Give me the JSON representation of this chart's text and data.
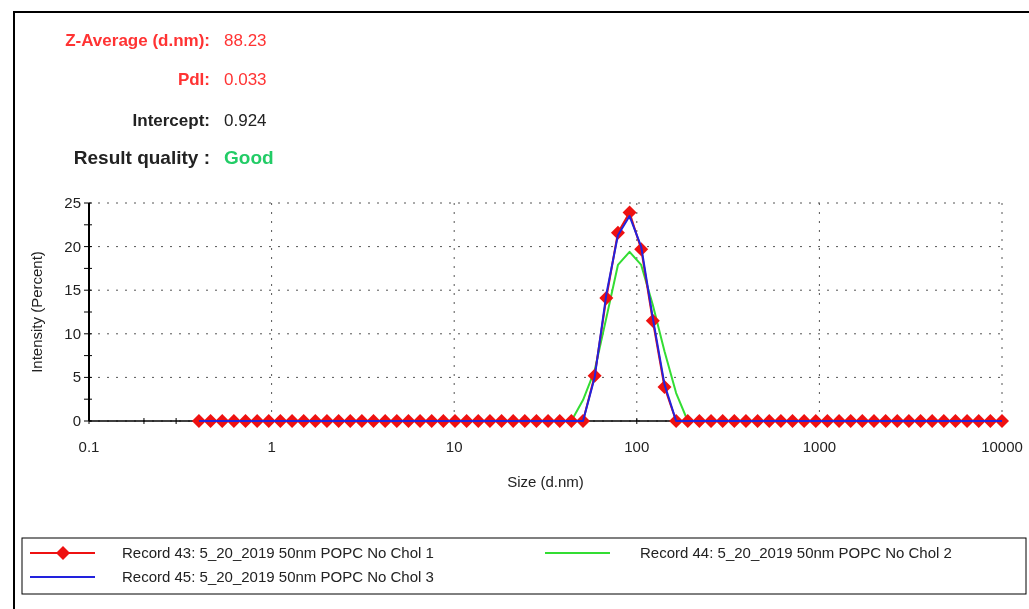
{
  "chart_data": {
    "type": "line",
    "annotations": [
      "Z-Average (d.nm):",
      "88.23",
      "PdI:",
      "0.033",
      "Intercept:",
      "0.924",
      "Result quality :",
      "Good"
    ],
    "xlabel": "Size (d.nm)",
    "ylabel": "Intensity (Percent)",
    "log": "x",
    "grid": true,
    "legend": "bottom",
    "line_style": "solid",
    "xlim": [
      0.1,
      10000
    ],
    "xticks": [
      0.1,
      {
        "value": 0.2,
        "label": null
      },
      {
        "value": 0.3,
        "label": null
      },
      1,
      10,
      100,
      1000,
      10000
    ],
    "ylim": [
      0,
      25
    ],
    "yticks": [
      0,
      {
        "value": 2.5,
        "label": null
      },
      5,
      {
        "value": 7.5,
        "label": null
      },
      10,
      {
        "value": 12.5,
        "label": null
      },
      15,
      {
        "value": 17.5,
        "label": null
      },
      20,
      {
        "value": 22.5,
        "label": null
      },
      25
    ],
    "x": [
      0.4,
      0.4632,
      0.5365,
      0.6213,
      0.7195,
      0.8332,
      0.9649,
      1.117,
      1.294,
      1.499,
      1.736,
      2.01,
      2.328,
      2.696,
      3.122,
      3.615,
      4.187,
      4.849,
      5.615,
      6.503,
      7.531,
      8.721,
      10.1,
      11.7,
      13.54,
      15.69,
      18.17,
      21.04,
      24.36,
      28.21,
      32.67,
      37.84,
      43.82,
      50.75,
      58.77,
      68.06,
      78.82,
      91.28,
      105.7,
      122.4,
      141.8,
      164.2,
      190.1,
      220.2,
      255.0,
      295.3,
      342.0,
      396.1,
      458.7,
      531.2,
      615.1,
      712.4,
      825.0,
      955.4,
      1106,
      1281,
      1484,
      1718,
      1990,
      2305,
      2669,
      3091,
      3580,
      4145,
      4801,
      5560,
      6439,
      7456,
      8635,
      10000
    ],
    "series": [
      {
        "name": "Record 44: 5_20_2019 50nm POPC No Chol 2",
        "color": "#33dd33",
        "marker": "none",
        "values": [
          null,
          null,
          null,
          null,
          null,
          null,
          null,
          null,
          null,
          null,
          null,
          null,
          null,
          null,
          null,
          null,
          null,
          null,
          null,
          null,
          null,
          null,
          null,
          null,
          null,
          null,
          null,
          null,
          null,
          null,
          null,
          null,
          0,
          2.4,
          5.8,
          11.8,
          17.9,
          19.4,
          17.9,
          13.3,
          8.0,
          3.2,
          0,
          null,
          null,
          null,
          null,
          null,
          null,
          null,
          null,
          null,
          null,
          null,
          null,
          null,
          null,
          null,
          null,
          null,
          null,
          null,
          null,
          null,
          null,
          null,
          null,
          null,
          null,
          null
        ]
      },
      {
        "name": "Record 43: 5_20_2019 50nm POPC No Chol 1",
        "color": "#ee1111",
        "marker": "diamond",
        "values": [
          0,
          0,
          0,
          0,
          0,
          0,
          0,
          0,
          0,
          0,
          0,
          0,
          0,
          0,
          0,
          0,
          0,
          0,
          0,
          0,
          0,
          0,
          0,
          0,
          0,
          0,
          0,
          0,
          0,
          0,
          0,
          0,
          0,
          0,
          5.2,
          14.1,
          21.6,
          23.9,
          19.7,
          11.5,
          3.9,
          0,
          0,
          0,
          0,
          0,
          0,
          0,
          0,
          0,
          0,
          0,
          0,
          0,
          0,
          0,
          0,
          0,
          0,
          0,
          0,
          0,
          0,
          0,
          0,
          0,
          0,
          0,
          0,
          0
        ]
      },
      {
        "name": "Record 45: 5_20_2019 50nm POPC No Chol 3",
        "color": "#2222dd",
        "marker": "none",
        "values": [
          0,
          0,
          0,
          0,
          0,
          0,
          0,
          0,
          0,
          0,
          0,
          0,
          0,
          0,
          0,
          0,
          0,
          0,
          0,
          0,
          0,
          0,
          0,
          0,
          0,
          0,
          0,
          0,
          0,
          0,
          0,
          0,
          0,
          0,
          5.0,
          14.5,
          21.3,
          23.5,
          20.0,
          11.8,
          4.2,
          0,
          0,
          0,
          0,
          0,
          0,
          0,
          0,
          0,
          0,
          0,
          0,
          0,
          0,
          0,
          0,
          0,
          0,
          0,
          0,
          0,
          0,
          0,
          0,
          0,
          0,
          0,
          0,
          0
        ]
      }
    ]
  }
}
